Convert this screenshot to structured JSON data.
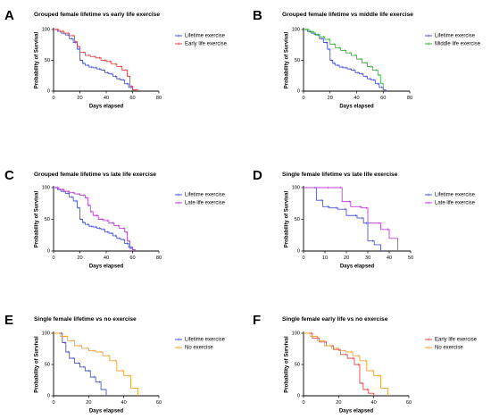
{
  "chart_data": [
    {
      "panel": "A",
      "type": "line",
      "title": "Grouped female lifetime vs early life exercise",
      "xlabel": "Days elapsed",
      "ylabel": "Probability of Survival",
      "xlim": [
        0,
        80
      ],
      "ylim": [
        0,
        100
      ],
      "xticks": [
        0,
        20,
        40,
        60,
        80
      ],
      "yticks": [
        0,
        50,
        100
      ],
      "legend": "right",
      "series": [
        {
          "name": "Lifetime exercise",
          "color": "#4a58d8",
          "x": [
            0,
            3,
            6,
            9,
            12,
            15,
            18,
            20,
            22,
            24,
            27,
            30,
            33,
            36,
            39,
            42,
            45,
            48,
            51,
            54,
            57,
            60,
            62
          ],
          "y": [
            100,
            97,
            94,
            91,
            85,
            79,
            68,
            50,
            45,
            42,
            39,
            38,
            36,
            34,
            30,
            28,
            24,
            20,
            18,
            12,
            6,
            2,
            0
          ]
        },
        {
          "name": "Early life exercise",
          "color": "#e8484b",
          "x": [
            0,
            4,
            8,
            12,
            16,
            18,
            20,
            24,
            28,
            32,
            36,
            40,
            44,
            48,
            52,
            56,
            58,
            60,
            64
          ],
          "y": [
            100,
            97,
            94,
            90,
            80,
            72,
            63,
            58,
            56,
            54,
            50,
            48,
            44,
            40,
            34,
            24,
            8,
            2,
            0
          ]
        }
      ]
    },
    {
      "panel": "B",
      "type": "line",
      "title": "Grouped female lifetime vs middle life exercise",
      "xlabel": "Days elapsed",
      "ylabel": "Probability of Survival",
      "xlim": [
        0,
        80
      ],
      "ylim": [
        0,
        100
      ],
      "xticks": [
        0,
        20,
        40,
        60,
        80
      ],
      "yticks": [
        0,
        50,
        100
      ],
      "legend": "right",
      "series": [
        {
          "name": "Lifetime exercise",
          "color": "#4a58d8",
          "x": [
            0,
            3,
            6,
            9,
            12,
            15,
            18,
            20,
            22,
            24,
            27,
            30,
            33,
            36,
            39,
            42,
            45,
            48,
            51,
            54,
            57,
            60,
            62
          ],
          "y": [
            100,
            97,
            94,
            91,
            85,
            79,
            68,
            50,
            45,
            42,
            39,
            38,
            36,
            34,
            30,
            28,
            24,
            20,
            18,
            12,
            6,
            2,
            0
          ]
        },
        {
          "name": "Middle life exercise",
          "color": "#33bb33",
          "x": [
            0,
            4,
            8,
            12,
            16,
            20,
            24,
            28,
            32,
            36,
            40,
            44,
            48,
            52,
            56,
            58,
            60
          ],
          "y": [
            100,
            96,
            92,
            88,
            84,
            76,
            70,
            66,
            62,
            58,
            52,
            46,
            40,
            34,
            26,
            12,
            0
          ]
        }
      ]
    },
    {
      "panel": "C",
      "type": "line",
      "title": "Grouped female lifetime vs late life exercise",
      "xlabel": "Days elapsed",
      "ylabel": "Probability of Survival",
      "xlim": [
        0,
        80
      ],
      "ylim": [
        0,
        100
      ],
      "xticks": [
        0,
        20,
        40,
        60,
        80
      ],
      "yticks": [
        0,
        50,
        100
      ],
      "legend": "right",
      "series": [
        {
          "name": "Lifetime exercise",
          "color": "#4a58d8",
          "x": [
            0,
            3,
            6,
            9,
            12,
            15,
            18,
            20,
            22,
            24,
            27,
            30,
            33,
            36,
            39,
            42,
            45,
            48,
            51,
            54,
            57,
            60,
            62
          ],
          "y": [
            100,
            97,
            94,
            91,
            85,
            79,
            68,
            50,
            45,
            42,
            39,
            38,
            36,
            34,
            30,
            28,
            24,
            20,
            18,
            12,
            6,
            2,
            0
          ]
        },
        {
          "name": "Late life exercise",
          "color": "#c040d8",
          "x": [
            0,
            4,
            8,
            12,
            16,
            20,
            24,
            26,
            28,
            30,
            34,
            38,
            42,
            46,
            50,
            54,
            56,
            58,
            60
          ],
          "y": [
            100,
            97,
            94,
            92,
            90,
            88,
            84,
            72,
            62,
            56,
            50,
            48,
            44,
            40,
            36,
            30,
            16,
            4,
            0
          ]
        }
      ]
    },
    {
      "panel": "D",
      "type": "line",
      "title": "Single female lifetime vs late life exercise",
      "xlabel": "Days elapsed",
      "ylabel": "Probability of Survival",
      "xlim": [
        0,
        50
      ],
      "ylim": [
        0,
        100
      ],
      "xticks": [
        0,
        10,
        20,
        30,
        40,
        50
      ],
      "yticks": [
        0,
        50,
        100
      ],
      "legend": "right",
      "series": [
        {
          "name": "Lifetime exercise",
          "color": "#4a58d8",
          "x": [
            0,
            6,
            9,
            12,
            16,
            20,
            25,
            28,
            30,
            33,
            36
          ],
          "y": [
            100,
            80,
            70,
            68,
            66,
            56,
            52,
            44,
            16,
            10,
            0
          ]
        },
        {
          "name": "Late life exercise",
          "color": "#c040d8",
          "x": [
            0,
            12,
            18,
            22,
            27,
            30,
            36,
            40,
            44
          ],
          "y": [
            100,
            100,
            78,
            70,
            68,
            44,
            34,
            20,
            0
          ]
        }
      ]
    },
    {
      "panel": "E",
      "type": "line",
      "title": "Single female lifetime vs no exercise",
      "xlabel": "Days elapsed",
      "ylabel": "Probability of Survival",
      "xlim": [
        0,
        60
      ],
      "ylim": [
        0,
        100
      ],
      "xticks": [
        0,
        20,
        40,
        60
      ],
      "yticks": [
        0,
        50,
        100
      ],
      "legend": "right",
      "series": [
        {
          "name": "Lifetime exercise",
          "color": "#4a58d8",
          "x": [
            0,
            5,
            7,
            9,
            12,
            15,
            18,
            21,
            24,
            27,
            30
          ],
          "y": [
            100,
            85,
            70,
            60,
            52,
            46,
            40,
            30,
            22,
            10,
            0
          ]
        },
        {
          "name": "No exercise",
          "color": "#f2a43a",
          "x": [
            0,
            4,
            8,
            12,
            16,
            20,
            24,
            28,
            32,
            36,
            40,
            44,
            48
          ],
          "y": [
            100,
            95,
            88,
            80,
            76,
            72,
            70,
            64,
            56,
            40,
            32,
            12,
            0
          ]
        }
      ]
    },
    {
      "panel": "F",
      "type": "line",
      "title": "Single female early life vs no exercise",
      "xlabel": "Days elapsed",
      "ylabel": "Probability of Survival",
      "xlim": [
        0,
        60
      ],
      "ylim": [
        0,
        100
      ],
      "xticks": [
        0,
        20,
        40,
        60
      ],
      "yticks": [
        0,
        50,
        100
      ],
      "legend": "right",
      "series": [
        {
          "name": "Early life exercise",
          "color": "#e8484b",
          "x": [
            0,
            5,
            9,
            13,
            17,
            21,
            25,
            29,
            32,
            34,
            37,
            40
          ],
          "y": [
            100,
            92,
            86,
            80,
            74,
            66,
            60,
            50,
            20,
            10,
            4,
            0
          ]
        },
        {
          "name": "No exercise",
          "color": "#f2a43a",
          "x": [
            0,
            4,
            8,
            12,
            16,
            20,
            24,
            28,
            32,
            36,
            40,
            44,
            48
          ],
          "y": [
            100,
            95,
            88,
            80,
            76,
            72,
            70,
            64,
            56,
            40,
            32,
            12,
            0
          ]
        }
      ]
    }
  ]
}
